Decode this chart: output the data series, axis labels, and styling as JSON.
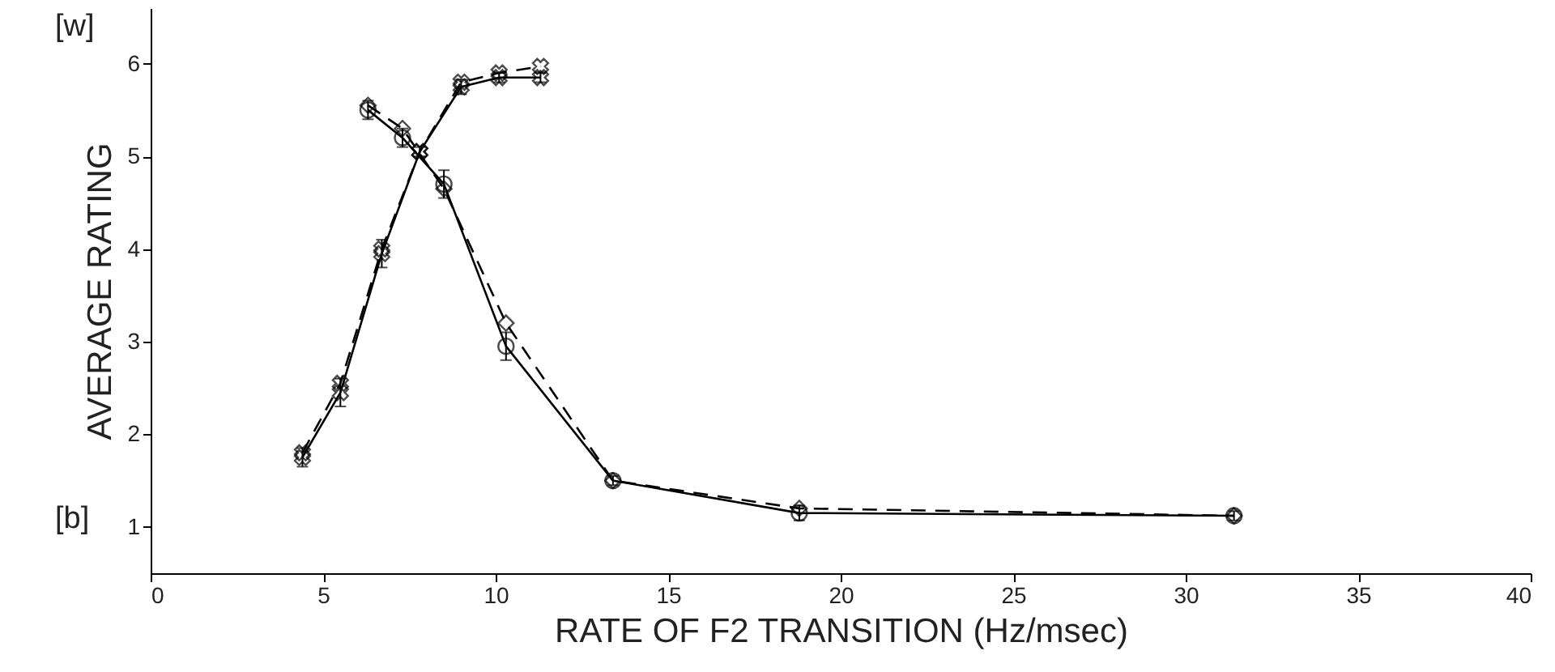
{
  "chart_data": {
    "type": "line",
    "xlabel": "RATE OF F2 TRANSITION (Hz/msec)",
    "ylabel": "AVERAGE RATING",
    "annotations": [
      "[w]",
      "[b]"
    ],
    "xlim": [
      0,
      40
    ],
    "xticks": [
      0,
      5,
      10,
      15,
      20,
      25,
      30,
      35,
      40
    ],
    "ylim": [
      0.5,
      6.6
    ],
    "yticks": [
      1,
      2,
      3,
      4,
      5,
      6
    ],
    "grid": false,
    "series": [
      {
        "color": "#000000",
        "marker": "cross",
        "line_style": "solid",
        "x": [
          4.4,
          5.5,
          6.7,
          7.8,
          9.0,
          10.1,
          11.3
        ],
        "values": [
          1.75,
          2.45,
          3.95,
          5.05,
          5.75,
          5.85,
          5.85
        ],
        "errors": [
          0.1,
          0.15,
          0.15,
          0.05,
          0.08,
          0.05,
          0.05
        ]
      },
      {
        "color": "#000000",
        "marker": "cross",
        "line_style": "dashed",
        "x": [
          4.4,
          5.5,
          6.7,
          7.8,
          9.0,
          10.1,
          11.3
        ],
        "values": [
          1.8,
          2.55,
          4.0,
          5.05,
          5.8,
          5.9,
          5.97
        ]
      },
      {
        "color": "#000000",
        "marker": "circle",
        "line_style": "solid",
        "x": [
          6.3,
          7.3,
          8.5,
          10.3,
          13.4,
          18.8,
          31.4
        ],
        "values": [
          5.5,
          5.2,
          4.7,
          2.95,
          1.5,
          1.15,
          1.12
        ],
        "errors": [
          0.1,
          0.1,
          0.15,
          0.15,
          0.05,
          0.08,
          0.05
        ]
      },
      {
        "color": "#000000",
        "marker": "diamond",
        "line_style": "dashed",
        "x": [
          6.3,
          7.3,
          8.5,
          10.3,
          13.4,
          18.8,
          31.4
        ],
        "values": [
          5.55,
          5.3,
          4.65,
          3.2,
          1.5,
          1.2,
          1.12
        ]
      }
    ]
  }
}
